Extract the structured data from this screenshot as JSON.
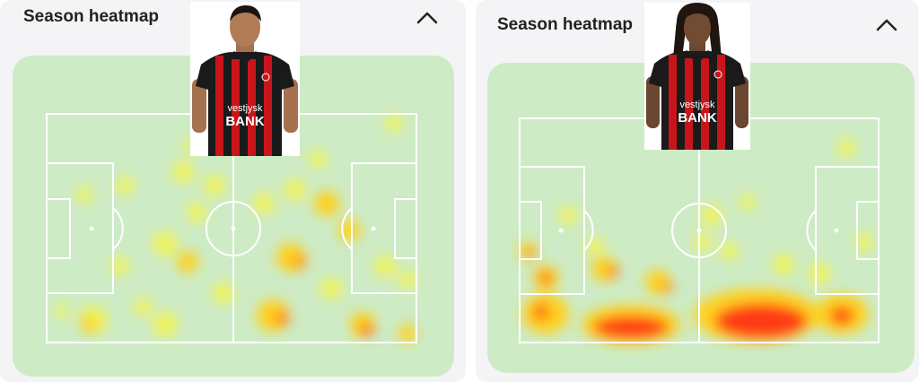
{
  "cards": [
    {
      "title": "Season heatmap",
      "collapse_icon": "chevron-up-icon",
      "player": {
        "shirt_sponsor_top": "vestjysk",
        "shirt_sponsor_bottom": "BANK",
        "hair": "short"
      }
    },
    {
      "title": "Season heatmap",
      "collapse_icon": "chevron-up-icon",
      "player": {
        "shirt_sponsor_top": "vestjysk",
        "shirt_sponsor_bottom": "BANK",
        "hair": "dreadlocks"
      }
    }
  ],
  "colors": {
    "card_bg": "#f4f4f6",
    "pitch_bg": "#cdebc5",
    "pitch_lines": "#ffffff",
    "heat_low": "#f0f35a",
    "heat_mid": "#ffd11a",
    "heat_high": "#ff3a12",
    "shirt_red": "#c8151b",
    "shirt_black": "#1a1a1a"
  }
}
